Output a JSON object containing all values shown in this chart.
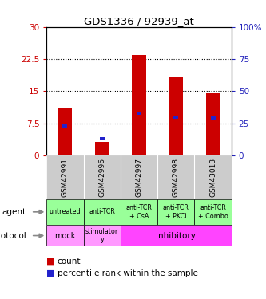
{
  "title": "GDS1336 / 92939_at",
  "samples": [
    "GSM42991",
    "GSM42996",
    "GSM42997",
    "GSM42998",
    "GSM43013"
  ],
  "count_values": [
    11.0,
    3.2,
    23.5,
    18.5,
    14.5
  ],
  "percentile_values": [
    23.0,
    13.0,
    33.0,
    30.0,
    29.0
  ],
  "left_ylim": [
    0,
    30
  ],
  "left_yticks": [
    0,
    7.5,
    15,
    22.5,
    30
  ],
  "left_yticklabels": [
    "0",
    "7.5",
    "15",
    "22.5",
    "30"
  ],
  "right_ylim": [
    0,
    100
  ],
  "right_yticks": [
    0,
    25,
    50,
    75,
    100
  ],
  "right_yticklabels": [
    "0",
    "25",
    "50",
    "75",
    "100%"
  ],
  "bar_color": "#cc0000",
  "percentile_color": "#2222cc",
  "left_tick_color": "#cc0000",
  "right_tick_color": "#2222bb",
  "agent_labels": [
    "untreated",
    "anti-TCR",
    "anti-TCR\n+ CsA",
    "anti-TCR\n+ PKCi",
    "anti-TCR\n+ Combo"
  ],
  "protocol_labels_mock": "mock",
  "protocol_labels_stim": "stimulator\ny",
  "protocol_labels_inhib": "inhibitory",
  "agent_bg": "#99ff99",
  "protocol_mock_bg": "#ff99ff",
  "protocol_stim_bg": "#ff99ff",
  "protocol_inhib_bg": "#ff44ff",
  "sample_bg": "#cccccc",
  "legend_count_color": "#cc0000",
  "legend_pct_color": "#2222cc"
}
